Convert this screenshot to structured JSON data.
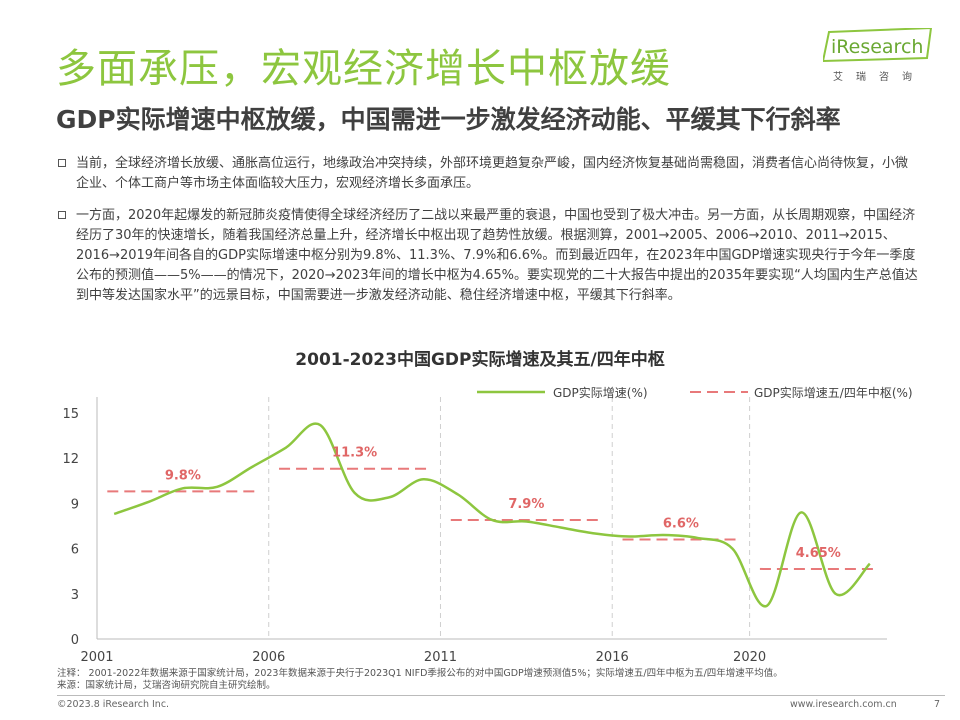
{
  "header": {
    "title": "多面承压，宏观经济增长中枢放缓",
    "subtitle": "GDP实际增速中枢放缓，中国需进一步激发经济动能、平缓其下行斜率"
  },
  "logo": {
    "brand": "iResearch",
    "chinese": "艾瑞咨询"
  },
  "bullets": [
    "当前，全球经济增长放缓、通胀高位运行，地缘政治冲突持续，外部环境更趋复杂严峻，国内经济恢复基础尚需稳固，消费者信心尚待恢复，小微企业、个体工商户等市场主体面临较大压力，宏观经济增长多面承压。",
    "一方面，2020年起爆发的新冠肺炎疫情使得全球经济经历了二战以来最严重的衰退，中国也受到了极大冲击。另一方面，从长周期观察，中国经济经历了30年的快速增长，随着我国经济总量上升，经济增长中枢出现了趋势性放缓。根据测算，2001→2005、2006→2010、2011→2015、2016→2019年间各自的GDP实际增速中枢分别为9.8%、11.3%、7.9%和6.6%。而到最近四年，在2023年中国GDP增速实现央行于今年一季度公布的预测值——5%——的情况下，2020→2023年间的增长中枢为4.65%。要实现党的二十大报告中提出的2035年要实现“人均国内生产总值达到中等发达国家水平”的远景目标，中国需要进一步激发经济动能、稳住经济增速中枢，平缓其下行斜率。"
  ],
  "colors": {
    "accent": "#8dc63f",
    "line": "#8dc63f",
    "dash": "#e8797a",
    "label": "#e06666"
  },
  "chart_data": {
    "type": "line",
    "title": "2001-2023中国GDP实际增速及其五/四年中枢",
    "x": [
      2001,
      2002,
      2003,
      2004,
      2005,
      2006,
      2007,
      2008,
      2009,
      2010,
      2011,
      2012,
      2013,
      2014,
      2015,
      2016,
      2017,
      2018,
      2019,
      2020,
      2021,
      2022,
      2023
    ],
    "series": [
      {
        "name": "GDP实际增速(%)",
        "values": [
          8.3,
          9.1,
          10.0,
          10.1,
          11.4,
          12.7,
          14.2,
          9.7,
          9.4,
          10.6,
          9.6,
          7.9,
          7.8,
          7.4,
          7.0,
          6.8,
          6.9,
          6.7,
          6.0,
          2.2,
          8.4,
          3.0,
          5.0
        ]
      },
      {
        "name": "GDP实际增速五/四年中枢(%)",
        "segments": [
          {
            "from": 2001,
            "to": 2005,
            "value": 9.8,
            "label": "9.8%"
          },
          {
            "from": 2006,
            "to": 2010,
            "value": 11.3,
            "label": "11.3%"
          },
          {
            "from": 2011,
            "to": 2015,
            "value": 7.9,
            "label": "7.9%"
          },
          {
            "from": 2016,
            "to": 2019,
            "value": 6.6,
            "label": "6.6%"
          },
          {
            "from": 2020,
            "to": 2023,
            "value": 4.65,
            "label": "4.65%"
          }
        ]
      }
    ],
    "xticks": [
      "2001",
      "2006",
      "2011",
      "2016",
      "2020"
    ],
    "yticks": [
      "0",
      "3",
      "6",
      "9",
      "12",
      "15"
    ],
    "ylim": [
      0,
      15
    ],
    "legend": "top-right"
  },
  "notes": {
    "note": "注释： 2001-2022年数据来源于国家统计局，2023年数据来源于央行于2023Q1 NIFD季报公布的对中国GDP增速预测值5%；实际增速五/四年中枢为五/四年增速平均值。",
    "source": "来源：国家统计局，艾瑞咨询研究院自主研究绘制。"
  },
  "footer": {
    "copyright": "©2023.8 iResearch Inc.",
    "website": "www.iresearch.com.cn",
    "page": "7"
  }
}
